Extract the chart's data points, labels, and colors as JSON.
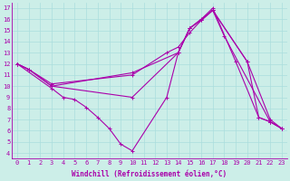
{
  "background_color": "#cceee8",
  "line_color": "#aa00aa",
  "grid_color": "#aadddd",
  "xlabel": "Windchill (Refroidissement éolien,°C)",
  "xlim": [
    -0.5,
    23.5
  ],
  "ylim": [
    3.5,
    17.5
  ],
  "xticks": [
    0,
    1,
    2,
    3,
    4,
    5,
    6,
    7,
    8,
    9,
    10,
    11,
    12,
    13,
    14,
    15,
    16,
    17,
    18,
    19,
    20,
    21,
    22,
    23
  ],
  "yticks": [
    4,
    5,
    6,
    7,
    8,
    9,
    10,
    11,
    12,
    13,
    14,
    15,
    16,
    17
  ],
  "series": [
    {
      "x": [
        0,
        1,
        3,
        10,
        14,
        15,
        16,
        17,
        19,
        21,
        22,
        23
      ],
      "y": [
        12,
        11.5,
        10.0,
        9.0,
        13.0,
        15.2,
        16.0,
        17.0,
        12.2,
        7.2,
        6.8,
        6.2
      ]
    },
    {
      "x": [
        0,
        1,
        3,
        10,
        14,
        15,
        16,
        17,
        18,
        22,
        23
      ],
      "y": [
        12,
        11.5,
        10.0,
        11.2,
        13.0,
        15.2,
        15.9,
        16.8,
        14.5,
        6.8,
        6.2
      ]
    },
    {
      "x": [
        0,
        3,
        4,
        5,
        6,
        7,
        8,
        9,
        10,
        13,
        14,
        15,
        17,
        20,
        21,
        22,
        23
      ],
      "y": [
        12,
        9.8,
        9.0,
        8.8,
        8.1,
        7.2,
        6.2,
        4.8,
        4.2,
        9.0,
        13.0,
        15.2,
        16.8,
        12.2,
        7.2,
        6.8,
        6.2
      ]
    },
    {
      "x": [
        0,
        1,
        3,
        10,
        13,
        14,
        15,
        16,
        17,
        20,
        22,
        23
      ],
      "y": [
        12,
        11.5,
        10.2,
        11.0,
        13.0,
        13.5,
        14.8,
        15.9,
        16.8,
        12.2,
        7.0,
        6.2
      ]
    }
  ],
  "tick_fontsize": 5.0,
  "axis_fontsize": 5.5,
  "marker": "+",
  "markersize": 3,
  "linewidth": 0.8
}
